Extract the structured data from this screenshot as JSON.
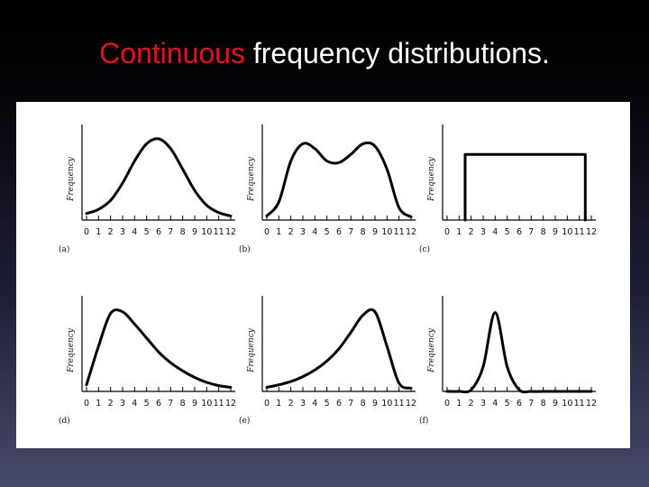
{
  "slide": {
    "title_accent": "Continuous",
    "title_rest": " frequency distributions."
  },
  "colors": {
    "title_accent": "#e0141e",
    "title_text": "#ffffff",
    "curve": "#000000",
    "panel_bg": "#ffffff"
  },
  "chart_data": [
    {
      "type": "line",
      "label": "(a)",
      "ylabel": "Frequency",
      "shape": "symmetric-bell",
      "x_ticks": [
        "0",
        "1",
        "2",
        "3",
        "4",
        "5",
        "6",
        "7",
        "8",
        "9",
        "10",
        "11",
        "12"
      ],
      "x": [
        0,
        1,
        2,
        3,
        4,
        5,
        6,
        7,
        8,
        9,
        10,
        11,
        12
      ],
      "y": [
        0.08,
        0.13,
        0.24,
        0.45,
        0.72,
        0.93,
        0.99,
        0.87,
        0.62,
        0.36,
        0.18,
        0.09,
        0.05
      ]
    },
    {
      "type": "line",
      "label": "(b)",
      "ylabel": "Frequency",
      "shape": "bimodal",
      "x_ticks": [
        "0",
        "1",
        "2",
        "3",
        "4",
        "5",
        "6",
        "7",
        "8",
        "9",
        "10",
        "11",
        "12"
      ],
      "x": [
        0,
        1,
        2,
        3,
        4,
        5,
        6,
        7,
        8,
        9,
        10,
        11,
        12
      ],
      "y": [
        0.05,
        0.22,
        0.72,
        0.93,
        0.87,
        0.72,
        0.7,
        0.8,
        0.93,
        0.9,
        0.62,
        0.15,
        0.04
      ]
    },
    {
      "type": "line",
      "label": "(c)",
      "ylabel": "Frequency",
      "shape": "uniform",
      "x_ticks": [
        "0",
        "1",
        "2",
        "3",
        "4",
        "5",
        "6",
        "7",
        "8",
        "9",
        "10",
        "11",
        "12"
      ],
      "x": [
        1.5,
        1.5,
        11.5,
        11.5
      ],
      "y": [
        0,
        0.8,
        0.8,
        0
      ]
    },
    {
      "type": "line",
      "label": "(d)",
      "ylabel": "Frequency",
      "shape": "right-skewed",
      "x_ticks": [
        "0",
        "1",
        "2",
        "3",
        "4",
        "5",
        "6",
        "7",
        "8",
        "9",
        "10",
        "11",
        "12"
      ],
      "x": [
        0,
        1,
        2,
        3,
        4,
        5,
        6,
        7,
        8,
        9,
        10,
        11,
        12
      ],
      "y": [
        0.08,
        0.55,
        0.95,
        0.97,
        0.82,
        0.65,
        0.48,
        0.35,
        0.25,
        0.17,
        0.11,
        0.07,
        0.05
      ]
    },
    {
      "type": "line",
      "label": "(e)",
      "ylabel": "Frequency",
      "shape": "left-skewed",
      "x_ticks": [
        "0",
        "1",
        "2",
        "3",
        "4",
        "5",
        "6",
        "7",
        "8",
        "9",
        "10",
        "11",
        "12"
      ],
      "x": [
        0,
        1,
        2,
        3,
        4,
        5,
        6,
        7,
        8,
        9,
        10,
        11,
        12
      ],
      "y": [
        0.05,
        0.08,
        0.12,
        0.18,
        0.26,
        0.37,
        0.52,
        0.72,
        0.93,
        0.97,
        0.55,
        0.1,
        0.04
      ]
    },
    {
      "type": "line",
      "label": "(f)",
      "ylabel": "Frequency",
      "shape": "narrow-bell",
      "x_ticks": [
        "0",
        "1",
        "2",
        "3",
        "4",
        "5",
        "6",
        "7",
        "8",
        "9",
        "10",
        "11",
        "12"
      ],
      "x": [
        0,
        1,
        2,
        3,
        4,
        5,
        6,
        7,
        8,
        9,
        10,
        11,
        12
      ],
      "y": [
        0,
        0,
        0.02,
        0.3,
        0.96,
        0.3,
        0.02,
        0,
        0,
        0,
        0,
        0,
        0
      ]
    }
  ]
}
